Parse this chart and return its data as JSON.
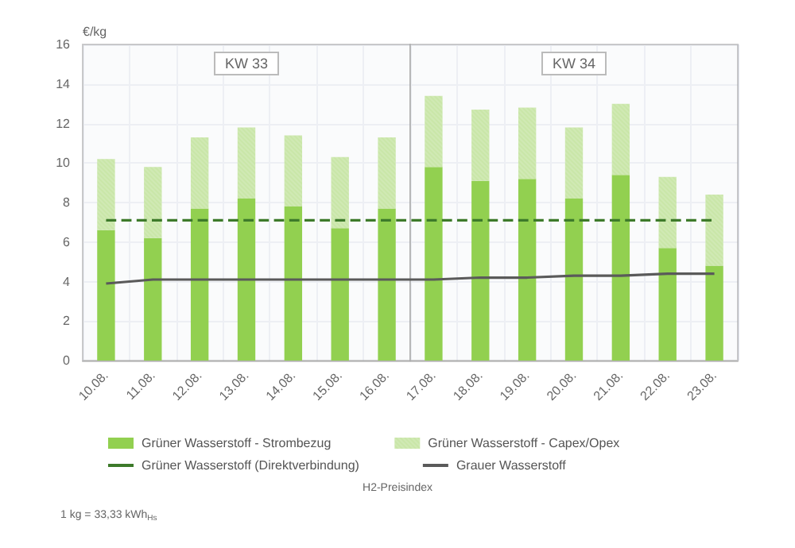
{
  "chart_data": {
    "type": "bar",
    "stacked": true,
    "ylabel": "€/kg",
    "categories": [
      "10.08.",
      "11.08.",
      "12.08.",
      "13.08.",
      "14.08.",
      "15.08.",
      "16.08.",
      "17.08.",
      "18.08.",
      "19.08.",
      "20.08.",
      "21.08.",
      "22.08.",
      "23.08."
    ],
    "series": [
      {
        "name": "Grüner Wasserstoff - Strombezug",
        "color": "#92d050",
        "values": [
          6.6,
          6.2,
          7.7,
          8.2,
          7.8,
          6.7,
          7.7,
          9.8,
          9.1,
          9.2,
          8.2,
          9.4,
          5.7,
          4.8
        ]
      },
      {
        "name": "Grüner Wasserstoff - Capex/Opex",
        "color": "#c9e6a8",
        "values": [
          3.6,
          3.6,
          3.6,
          3.6,
          3.6,
          3.6,
          3.6,
          3.6,
          3.6,
          3.6,
          3.6,
          3.6,
          3.6,
          3.6
        ]
      },
      {
        "name": "Grüner Wasserstoff (Direktverbindung)",
        "type": "line",
        "line_style": "dashed",
        "color": "#3d7a2a",
        "values": [
          7.1,
          7.1,
          7.1,
          7.1,
          7.1,
          7.1,
          7.1,
          7.1,
          7.1,
          7.1,
          7.1,
          7.1,
          7.1,
          7.1
        ]
      },
      {
        "name": "Grauer Wasserstoff",
        "type": "line",
        "line_style": "solid",
        "color": "#5a5a5a",
        "values": [
          3.9,
          4.1,
          4.1,
          4.1,
          4.1,
          4.1,
          4.1,
          4.1,
          4.2,
          4.2,
          4.3,
          4.3,
          4.4,
          4.4
        ]
      }
    ],
    "ylim": [
      0,
      16
    ],
    "yticks": [
      0,
      2,
      4,
      6,
      8,
      10,
      12,
      14,
      16
    ],
    "grid": true,
    "legend": "bottom",
    "marker": "none",
    "bands": [
      {
        "axis": "x",
        "from": "10.08.",
        "to": "16.08.",
        "label": "KW 33",
        "color": "#f6f7fa"
      },
      {
        "axis": "x",
        "from": "17.08.",
        "to": "23.08.",
        "label": "KW 34",
        "color": "#f6f7fa"
      }
    ],
    "annotations": [
      "H2-Preisindex",
      "1 kg = 33,33 kWh$_{Hs}$"
    ]
  }
}
